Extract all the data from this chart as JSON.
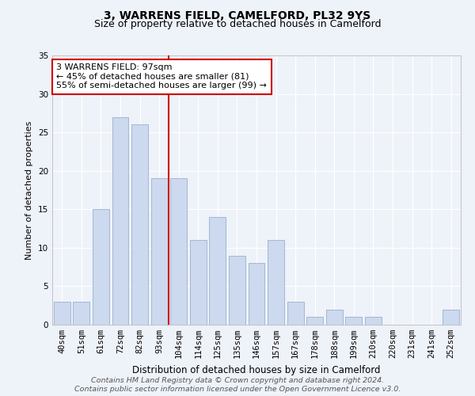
{
  "title": "3, WARRENS FIELD, CAMELFORD, PL32 9YS",
  "subtitle": "Size of property relative to detached houses in Camelford",
  "xlabel": "Distribution of detached houses by size in Camelford",
  "ylabel": "Number of detached properties",
  "categories": [
    "40sqm",
    "51sqm",
    "61sqm",
    "72sqm",
    "82sqm",
    "93sqm",
    "104sqm",
    "114sqm",
    "125sqm",
    "135sqm",
    "146sqm",
    "157sqm",
    "167sqm",
    "178sqm",
    "188sqm",
    "199sqm",
    "210sqm",
    "220sqm",
    "231sqm",
    "241sqm",
    "252sqm"
  ],
  "values": [
    3,
    3,
    15,
    27,
    26,
    19,
    19,
    11,
    14,
    9,
    8,
    11,
    3,
    1,
    2,
    1,
    1,
    0,
    0,
    0,
    2
  ],
  "bar_color": "#ccd9ee",
  "bar_edgecolor": "#9ab0cf",
  "vline_x": 6,
  "vline_color": "#cc0000",
  "annotation_text": "3 WARRENS FIELD: 97sqm\n← 45% of detached houses are smaller (81)\n55% of semi-detached houses are larger (99) →",
  "annotation_box_color": "#ffffff",
  "annotation_box_edgecolor": "#cc0000",
  "ylim": [
    0,
    35
  ],
  "yticks": [
    0,
    5,
    10,
    15,
    20,
    25,
    30,
    35
  ],
  "footer1": "Contains HM Land Registry data © Crown copyright and database right 2024.",
  "footer2": "Contains public sector information licensed under the Open Government Licence v3.0.",
  "bg_color": "#eef2f9",
  "grid_color": "#ffffff",
  "title_fontsize": 10,
  "subtitle_fontsize": 9,
  "xlabel_fontsize": 8.5,
  "ylabel_fontsize": 8,
  "tick_fontsize": 7.5,
  "annotation_fontsize": 8,
  "footer_fontsize": 6.8
}
